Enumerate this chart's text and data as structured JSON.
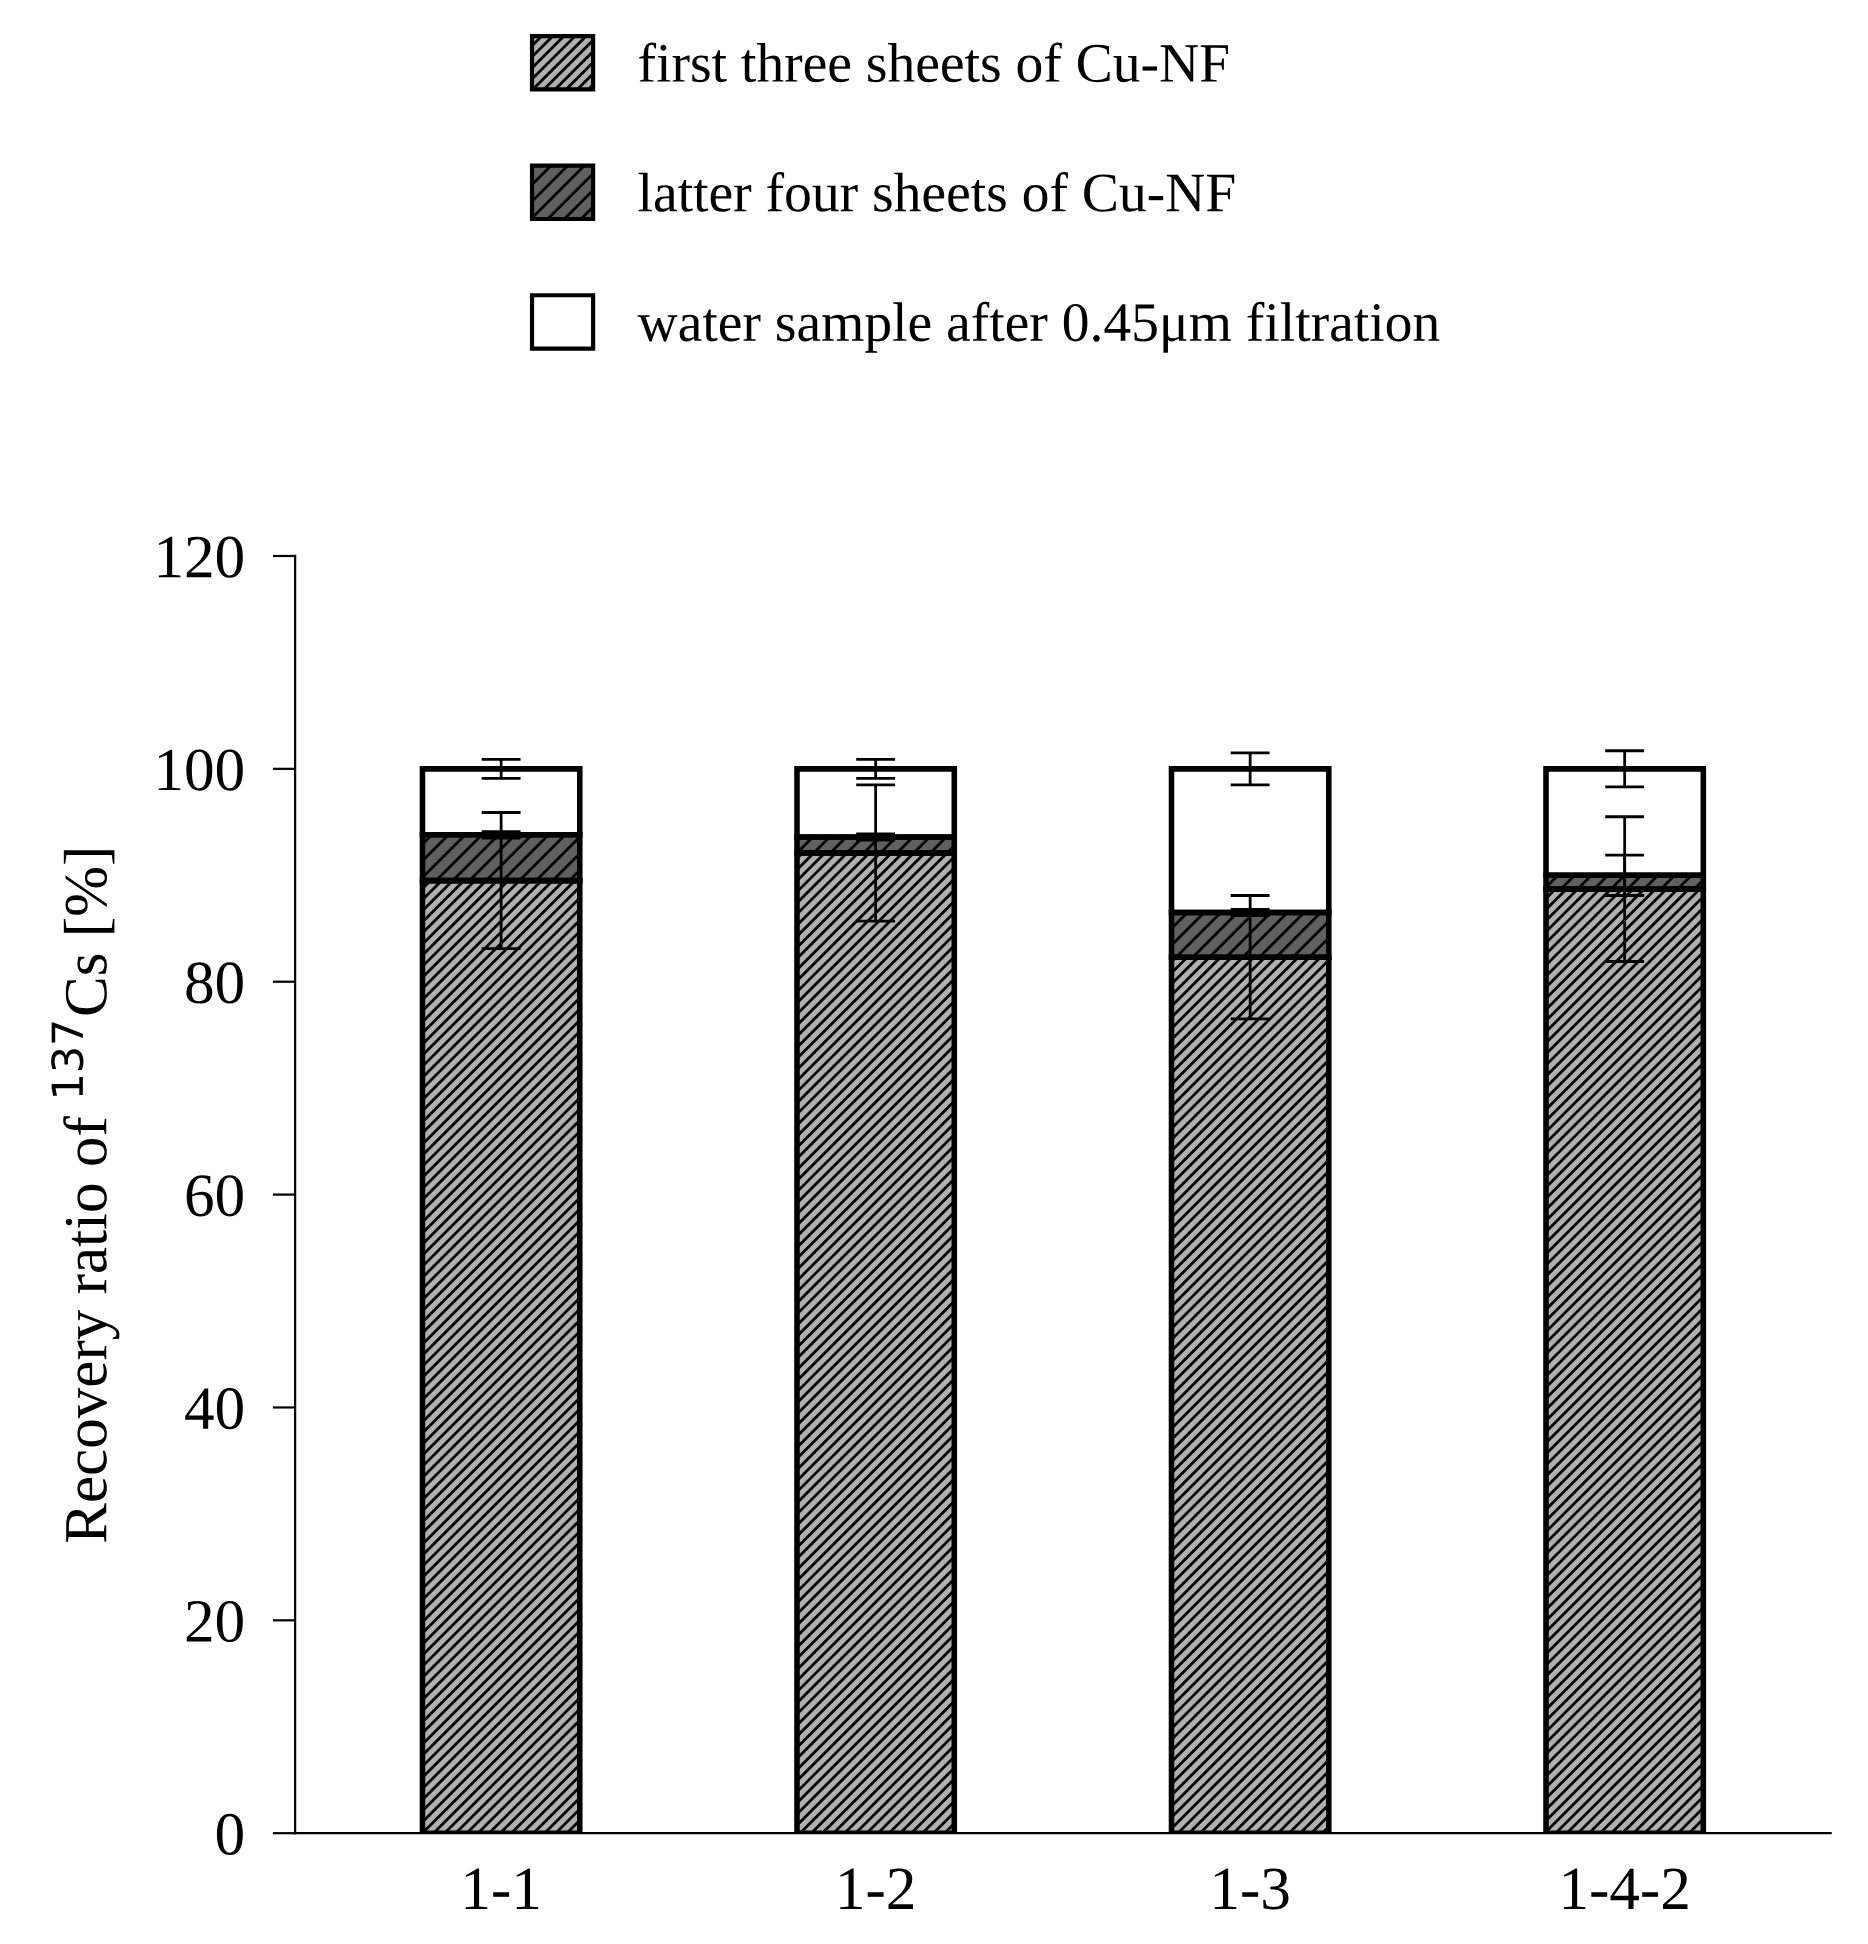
{
  "chart_data": {
    "type": "bar",
    "stacked": true,
    "ylabel": "Recovery ratio of $^{137}$Cs [%]",
    "categories": [
      "1-1",
      "1-2",
      "1-3",
      "1-4-2"
    ],
    "series": [
      {
        "name": "first three sheets of Cu-NF",
        "color": "#b0b0b0",
        "values": [
          89.5,
          92.1,
          82.3,
          88.7
        ],
        "errors": [
          6.4,
          6.4,
          5.8,
          6.8
        ]
      },
      {
        "name": "latter four sheets of Cu-NF",
        "color": "#606060",
        "values": [
          4.3,
          1.5,
          4.2,
          1.3
        ],
        "errors": [
          0.3,
          0.3,
          0.3,
          1.9
        ]
      },
      {
        "name": "water sample after 0.45μm filtration",
        "color": "#ffffff",
        "values": [
          6.2,
          6.4,
          13.5,
          10.0
        ],
        "errors": [
          0.9,
          0.9,
          1.5,
          1.7
        ]
      }
    ],
    "ylim": [
      0,
      120
    ],
    "yticks": [
      0,
      20,
      40,
      60,
      80,
      100,
      120
    ],
    "grid": false,
    "legend": "top"
  }
}
